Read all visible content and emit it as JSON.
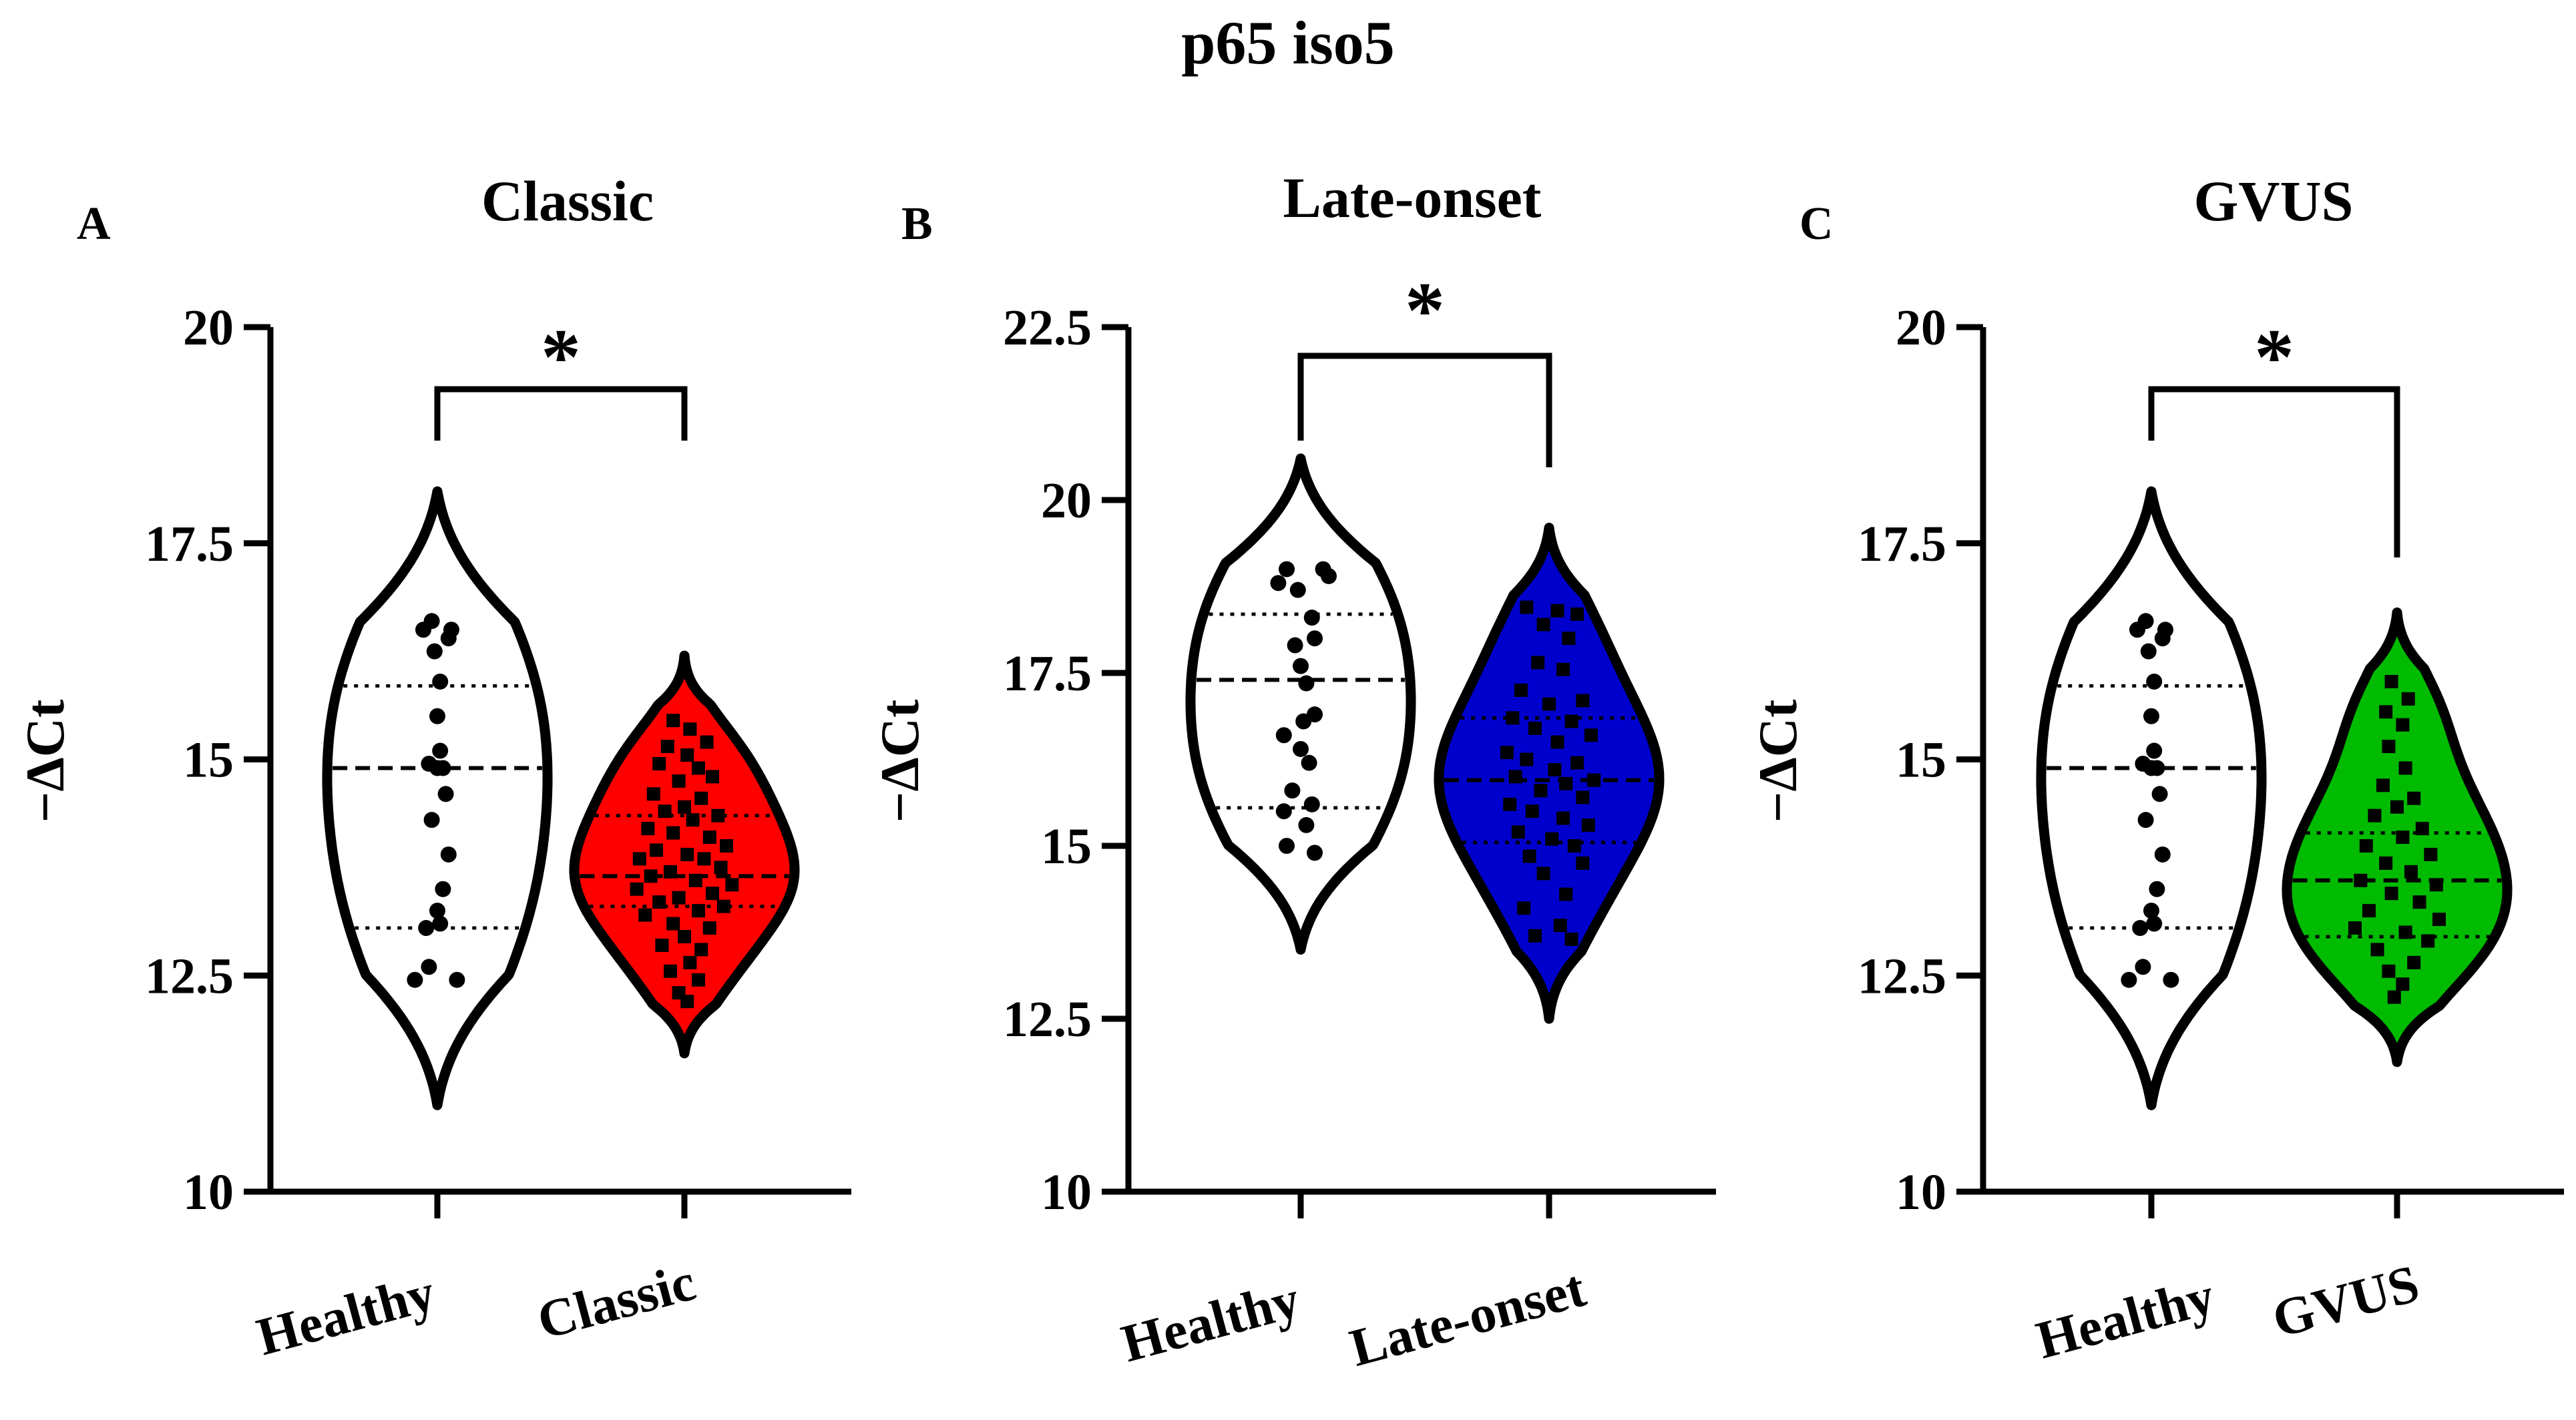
{
  "figure_title": "p65 iso5",
  "chart_data": [
    {
      "type": "violin",
      "panel_label": "A",
      "title": "Classic",
      "ylabel": "−ΔCt",
      "ylim": [
        10,
        20
      ],
      "yticks": [
        "10",
        "12.5",
        "15",
        "17.5",
        "20"
      ],
      "categories": [
        "Healthy",
        "Classic"
      ],
      "fill_colors": [
        "#ffffff",
        "#ff0000"
      ],
      "significance": "*",
      "series": [
        {
          "name": "Healthy",
          "marker": "circle",
          "median": 14.9,
          "q1": 13.05,
          "q3": 15.85,
          "min": 11.0,
          "max": 18.1,
          "points": [
            [
              -0.02,
              16.6
            ],
            [
              -0.05,
              16.5
            ],
            [
              0.04,
              16.4
            ],
            [
              0.05,
              16.5
            ],
            [
              -0.01,
              16.25
            ],
            [
              0.01,
              15.9
            ],
            [
              0.0,
              15.5
            ],
            [
              0.01,
              15.1
            ],
            [
              -0.03,
              14.95
            ],
            [
              0.0,
              14.9
            ],
            [
              0.02,
              14.9
            ],
            [
              0.03,
              14.6
            ],
            [
              -0.02,
              14.3
            ],
            [
              0.04,
              13.9
            ],
            [
              0.02,
              13.5
            ],
            [
              0.0,
              13.25
            ],
            [
              -0.04,
              13.05
            ],
            [
              0.01,
              13.1
            ],
            [
              -0.03,
              12.6
            ],
            [
              0.07,
              12.45
            ],
            [
              -0.08,
              12.45
            ]
          ]
        },
        {
          "name": "Classic",
          "marker": "square",
          "median": 13.65,
          "q1": 13.3,
          "q3": 14.35,
          "min": 11.6,
          "max": 16.2,
          "points": [
            [
              -0.04,
              15.45
            ],
            [
              0.02,
              15.35
            ],
            [
              0.08,
              15.2
            ],
            [
              -0.06,
              15.15
            ],
            [
              0.01,
              15.05
            ],
            [
              -0.09,
              14.95
            ],
            [
              0.05,
              14.9
            ],
            [
              0.1,
              14.8
            ],
            [
              -0.02,
              14.75
            ],
            [
              -0.11,
              14.6
            ],
            [
              0.06,
              14.55
            ],
            [
              0.0,
              14.45
            ],
            [
              -0.07,
              14.4
            ],
            [
              0.12,
              14.35
            ],
            [
              0.03,
              14.3
            ],
            [
              -0.13,
              14.2
            ],
            [
              -0.04,
              14.15
            ],
            [
              0.09,
              14.1
            ],
            [
              0.15,
              14.0
            ],
            [
              -0.1,
              13.95
            ],
            [
              0.01,
              13.9
            ],
            [
              -0.16,
              13.85
            ],
            [
              0.07,
              13.85
            ],
            [
              0.13,
              13.75
            ],
            [
              -0.05,
              13.7
            ],
            [
              -0.12,
              13.65
            ],
            [
              0.04,
              13.6
            ],
            [
              0.17,
              13.55
            ],
            [
              -0.17,
              13.5
            ],
            [
              0.1,
              13.45
            ],
            [
              -0.02,
              13.4
            ],
            [
              -0.09,
              13.35
            ],
            [
              0.14,
              13.3
            ],
            [
              0.05,
              13.25
            ],
            [
              -0.14,
              13.2
            ],
            [
              -0.04,
              13.1
            ],
            [
              0.09,
              13.05
            ],
            [
              0.0,
              12.95
            ],
            [
              -0.08,
              12.85
            ],
            [
              0.06,
              12.8
            ],
            [
              0.02,
              12.65
            ],
            [
              -0.05,
              12.55
            ],
            [
              0.05,
              12.45
            ],
            [
              -0.02,
              12.3
            ],
            [
              0.01,
              12.2
            ]
          ]
        }
      ]
    },
    {
      "type": "violin",
      "panel_label": "B",
      "title": "Late-onset",
      "ylabel": "−ΔCt",
      "ylim": [
        10,
        22.5
      ],
      "yticks": [
        "10",
        "12.5",
        "15",
        "17.5",
        "20",
        "22.5"
      ],
      "categories": [
        "Healthy",
        "Late-onset"
      ],
      "fill_colors": [
        "#ffffff",
        "#0000cc"
      ],
      "significance": "*",
      "series": [
        {
          "name": "Healthy",
          "marker": "circle",
          "median": 17.4,
          "q1": 15.55,
          "q3": 18.35,
          "min": 13.5,
          "max": 20.6,
          "points": [
            [
              -0.05,
              19.0
            ],
            [
              0.08,
              19.0
            ],
            [
              0.1,
              18.9
            ],
            [
              -0.08,
              18.8
            ],
            [
              -0.01,
              18.7
            ],
            [
              0.04,
              18.3
            ],
            [
              0.05,
              18.0
            ],
            [
              -0.02,
              17.9
            ],
            [
              0.0,
              17.6
            ],
            [
              0.02,
              17.35
            ],
            [
              0.05,
              16.9
            ],
            [
              0.01,
              16.8
            ],
            [
              -0.06,
              16.6
            ],
            [
              0.0,
              16.4
            ],
            [
              0.03,
              16.2
            ],
            [
              -0.03,
              15.8
            ],
            [
              0.04,
              15.6
            ],
            [
              -0.06,
              15.5
            ],
            [
              0.02,
              15.3
            ],
            [
              -0.05,
              15.0
            ],
            [
              0.05,
              14.9
            ]
          ]
        },
        {
          "name": "Late-onset",
          "marker": "square",
          "median": 15.95,
          "q1": 15.05,
          "q3": 16.85,
          "min": 12.5,
          "max": 19.6,
          "points": [
            [
              -0.08,
              18.45
            ],
            [
              0.03,
              18.4
            ],
            [
              0.1,
              18.35
            ],
            [
              -0.02,
              18.2
            ],
            [
              0.07,
              18.0
            ],
            [
              -0.04,
              17.65
            ],
            [
              0.05,
              17.55
            ],
            [
              -0.1,
              17.25
            ],
            [
              0.12,
              17.1
            ],
            [
              0.0,
              17.05
            ],
            [
              -0.13,
              16.85
            ],
            [
              0.08,
              16.8
            ],
            [
              -0.05,
              16.7
            ],
            [
              0.15,
              16.6
            ],
            [
              0.03,
              16.5
            ],
            [
              -0.15,
              16.35
            ],
            [
              -0.08,
              16.25
            ],
            [
              0.1,
              16.2
            ],
            [
              0.02,
              16.1
            ],
            [
              -0.12,
              16.0
            ],
            [
              0.16,
              15.95
            ],
            [
              0.06,
              15.9
            ],
            [
              -0.03,
              15.8
            ],
            [
              0.12,
              15.7
            ],
            [
              -0.14,
              15.6
            ],
            [
              -0.06,
              15.5
            ],
            [
              0.05,
              15.4
            ],
            [
              0.14,
              15.3
            ],
            [
              -0.11,
              15.2
            ],
            [
              0.01,
              15.1
            ],
            [
              0.09,
              15.0
            ],
            [
              -0.07,
              14.85
            ],
            [
              0.12,
              14.75
            ],
            [
              -0.02,
              14.6
            ],
            [
              0.06,
              14.3
            ],
            [
              -0.09,
              14.1
            ],
            [
              0.04,
              13.85
            ],
            [
              -0.05,
              13.7
            ],
            [
              0.08,
              13.65
            ]
          ]
        }
      ]
    },
    {
      "type": "violin",
      "panel_label": "C",
      "title": "GVUS",
      "ylabel": "−ΔCt",
      "ylim": [
        10,
        20
      ],
      "yticks": [
        "10",
        "12.5",
        "15",
        "17.5",
        "20"
      ],
      "categories": [
        "Healthy",
        "GVUS"
      ],
      "fill_colors": [
        "#ffffff",
        "#00bb00"
      ],
      "significance": "*",
      "series": [
        {
          "name": "Healthy",
          "marker": "circle",
          "median": 14.9,
          "q1": 13.05,
          "q3": 15.85,
          "min": 11.0,
          "max": 18.1,
          "points": [
            [
              -0.02,
              16.6
            ],
            [
              -0.05,
              16.5
            ],
            [
              0.04,
              16.4
            ],
            [
              0.05,
              16.5
            ],
            [
              -0.01,
              16.25
            ],
            [
              0.01,
              15.9
            ],
            [
              0.0,
              15.5
            ],
            [
              0.01,
              15.1
            ],
            [
              -0.03,
              14.95
            ],
            [
              0.0,
              14.9
            ],
            [
              0.02,
              14.9
            ],
            [
              0.03,
              14.6
            ],
            [
              -0.02,
              14.3
            ],
            [
              0.04,
              13.9
            ],
            [
              0.02,
              13.5
            ],
            [
              0.0,
              13.25
            ],
            [
              -0.04,
              13.05
            ],
            [
              0.01,
              13.1
            ],
            [
              -0.03,
              12.6
            ],
            [
              0.07,
              12.45
            ],
            [
              -0.08,
              12.45
            ]
          ]
        },
        {
          "name": "GVUS",
          "marker": "square",
          "median": 13.6,
          "q1": 12.95,
          "q3": 14.15,
          "min": 11.5,
          "max": 16.7,
          "points": [
            [
              -0.02,
              15.9
            ],
            [
              0.04,
              15.7
            ],
            [
              -0.04,
              15.55
            ],
            [
              0.02,
              15.4
            ],
            [
              -0.03,
              15.15
            ],
            [
              0.03,
              14.9
            ],
            [
              -0.05,
              14.7
            ],
            [
              0.06,
              14.55
            ],
            [
              0.0,
              14.45
            ],
            [
              -0.08,
              14.35
            ],
            [
              0.09,
              14.2
            ],
            [
              0.02,
              14.1
            ],
            [
              -0.11,
              14.0
            ],
            [
              0.12,
              13.9
            ],
            [
              -0.04,
              13.8
            ],
            [
              0.05,
              13.7
            ],
            [
              -0.13,
              13.6
            ],
            [
              0.14,
              13.55
            ],
            [
              -0.02,
              13.45
            ],
            [
              0.08,
              13.35
            ],
            [
              -0.1,
              13.25
            ],
            [
              0.15,
              13.15
            ],
            [
              -0.15,
              13.05
            ],
            [
              0.03,
              13.0
            ],
            [
              0.11,
              12.9
            ],
            [
              -0.07,
              12.8
            ],
            [
              0.06,
              12.65
            ],
            [
              -0.03,
              12.55
            ],
            [
              0.02,
              12.4
            ],
            [
              -0.01,
              12.25
            ]
          ]
        }
      ]
    }
  ]
}
